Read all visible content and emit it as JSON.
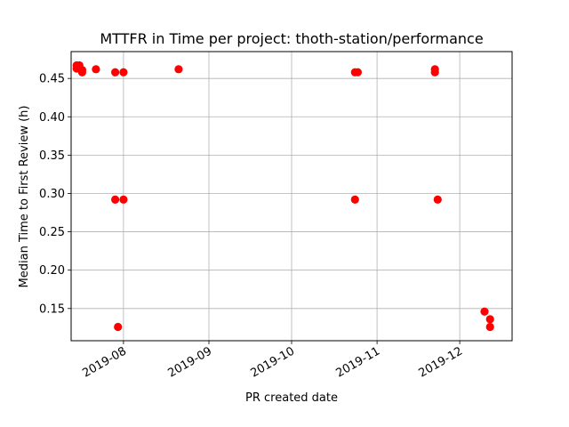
{
  "chart_data": {
    "type": "scatter",
    "title": "MTTFR in Time per project: thoth-station/performance",
    "xlabel": "PR created date",
    "ylabel": "Median Time to First Review (h)",
    "x_axis": {
      "type": "date",
      "range": [
        "2019-07-13",
        "2019-12-20"
      ],
      "ticks": [
        {
          "value": "2019-08-01",
          "label": "2019-08"
        },
        {
          "value": "2019-09-01",
          "label": "2019-09"
        },
        {
          "value": "2019-10-01",
          "label": "2019-10"
        },
        {
          "value": "2019-11-01",
          "label": "2019-11"
        },
        {
          "value": "2019-12-01",
          "label": "2019-12"
        }
      ]
    },
    "y_axis": {
      "range": [
        0.108,
        0.485
      ],
      "ticks": [
        {
          "value": 0.15,
          "label": "0.15"
        },
        {
          "value": 0.2,
          "label": "0.20"
        },
        {
          "value": 0.25,
          "label": "0.25"
        },
        {
          "value": 0.3,
          "label": "0.30"
        },
        {
          "value": 0.35,
          "label": "0.35"
        },
        {
          "value": 0.4,
          "label": "0.40"
        },
        {
          "value": 0.45,
          "label": "0.45"
        }
      ]
    },
    "grid": true,
    "marker_color": "#ff0000",
    "points": [
      {
        "x": "2019-07-15",
        "y": 0.467
      },
      {
        "x": "2019-07-15",
        "y": 0.463
      },
      {
        "x": "2019-07-16",
        "y": 0.467
      },
      {
        "x": "2019-07-16",
        "y": 0.463
      },
      {
        "x": "2019-07-17",
        "y": 0.461
      },
      {
        "x": "2019-07-17",
        "y": 0.458
      },
      {
        "x": "2019-07-22",
        "y": 0.462
      },
      {
        "x": "2019-07-29",
        "y": 0.458
      },
      {
        "x": "2019-08-01",
        "y": 0.458
      },
      {
        "x": "2019-07-29",
        "y": 0.292
      },
      {
        "x": "2019-08-01",
        "y": 0.292
      },
      {
        "x": "2019-07-30",
        "y": 0.126
      },
      {
        "x": "2019-08-21",
        "y": 0.462
      },
      {
        "x": "2019-10-24",
        "y": 0.458
      },
      {
        "x": "2019-10-25",
        "y": 0.458
      },
      {
        "x": "2019-10-24",
        "y": 0.292
      },
      {
        "x": "2019-11-22",
        "y": 0.462
      },
      {
        "x": "2019-11-22",
        "y": 0.458
      },
      {
        "x": "2019-11-23",
        "y": 0.292
      },
      {
        "x": "2019-12-10",
        "y": 0.146
      },
      {
        "x": "2019-12-12",
        "y": 0.136
      },
      {
        "x": "2019-12-12",
        "y": 0.126
      }
    ]
  }
}
